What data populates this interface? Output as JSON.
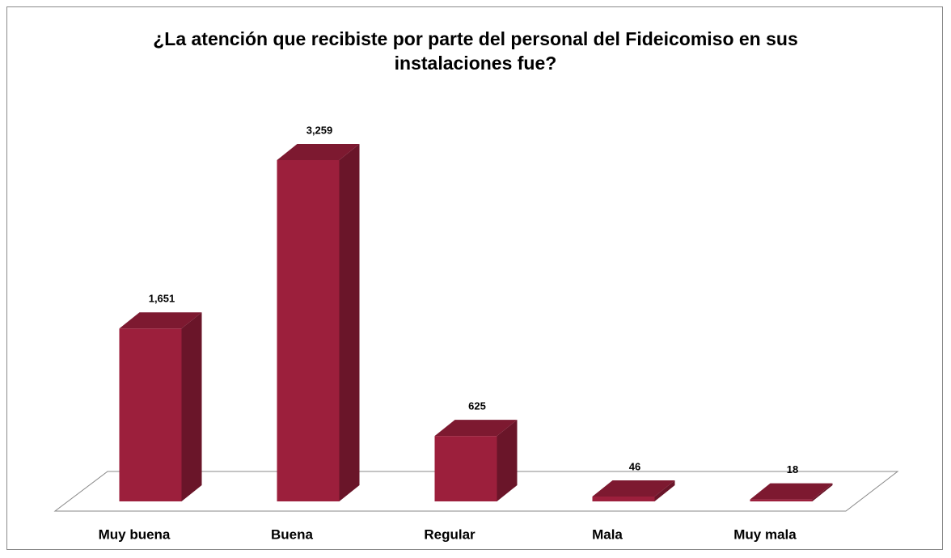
{
  "chart_data": {
    "type": "bar3d",
    "title": "¿La atención que recibiste por parte del personal del Fideicomiso en sus instalaciones fue?",
    "categories": [
      "Muy buena",
      "Buena",
      "Regular",
      "Mala",
      "Muy mala"
    ],
    "values": [
      1651,
      3259,
      625,
      46,
      18
    ],
    "value_labels": [
      "1,651",
      "3,259",
      "625",
      "46",
      "18"
    ],
    "color": "#9c1f3c"
  }
}
